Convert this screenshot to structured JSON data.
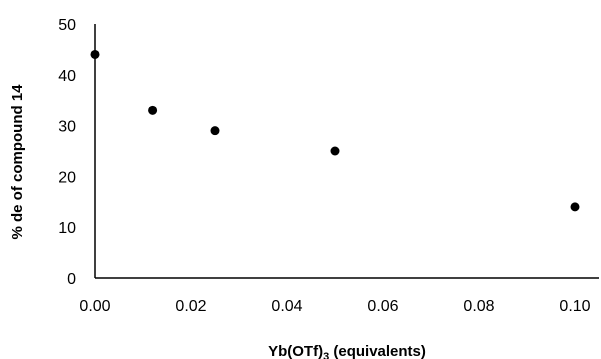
{
  "chart_data": {
    "type": "scatter",
    "title": "",
    "xlabel": {
      "prefix": "Yb(OTf)",
      "subscript": "3",
      "suffix": " (equivalents)"
    },
    "ylabel": "% de of compound 14",
    "xlim": [
      0,
      0.105
    ],
    "ylim": [
      0,
      50
    ],
    "x_ticks": [
      "0.00",
      "0.02",
      "0.04",
      "0.06",
      "0.08",
      "0.10"
    ],
    "y_ticks": [
      "0",
      "10",
      "20",
      "30",
      "40",
      "50"
    ],
    "grid": false,
    "legend": "none",
    "marker_color": "#000000",
    "series": [
      {
        "x": [
          0.0,
          0.012,
          0.025,
          0.05,
          0.1
        ],
        "y": [
          44,
          33,
          29,
          25,
          14
        ]
      }
    ]
  }
}
